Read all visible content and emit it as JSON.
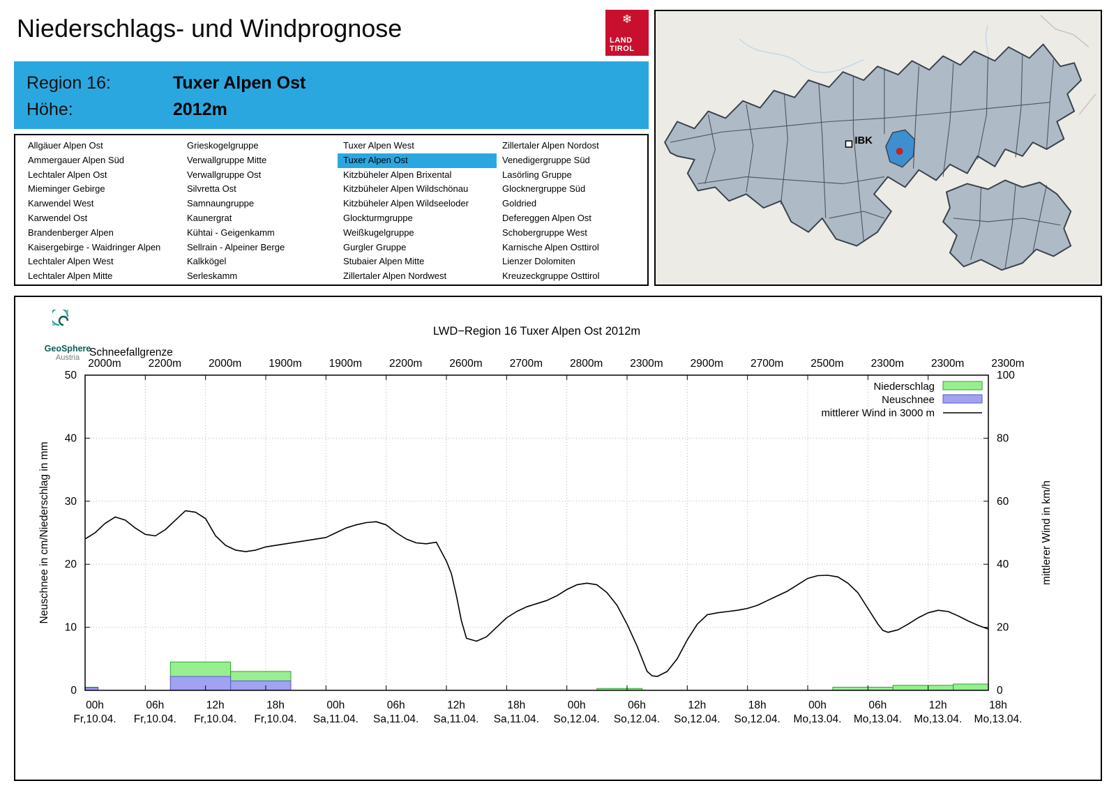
{
  "theme": {
    "accent_blue": "#2BA7E0",
    "logo_red": "#C8102E",
    "map_region_fill": "#AEBAC6",
    "map_region_border": "#39424E",
    "map_highlight": "#3E8FD0",
    "map_marker_red": "#C22420",
    "precip_fill": "#98EE90",
    "precip_border": "#2FA32F",
    "snow_fill": "#A2A2F2",
    "snow_border": "#5A5ACE",
    "wind_color": "#000000"
  },
  "header": {
    "title": "Niederschlags- und Windprognose",
    "logo_snowflake": "❄",
    "logo_line1": "LAND",
    "logo_line2": "TIROL"
  },
  "region_info": {
    "region_label": "Region 16:",
    "region_value": "Tuxer Alpen Ost",
    "altitude_label": "Höhe:",
    "altitude_value": "2012m"
  },
  "region_list": {
    "selected": "Tuxer Alpen Ost",
    "columns": [
      [
        "Allgäuer Alpen Ost",
        "Ammergauer Alpen Süd",
        "Lechtaler Alpen Ost",
        "Mieminger Gebirge",
        "Karwendel West",
        "Karwendel Ost",
        "Brandenberger Alpen",
        "Kaisergebirge - Waidringer Alpen",
        "Lechtaler Alpen West",
        "Lechtaler Alpen Mitte"
      ],
      [
        "Grieskogelgruppe",
        "Verwallgruppe Mitte",
        "Verwallgruppe Ost",
        "Silvretta Ost",
        "Samnaungruppe",
        "Kaunergrat",
        "Kühtai - Geigenkamm",
        "Sellrain - Alpeiner Berge",
        "Kalkkögel",
        "Serleskamm"
      ],
      [
        "Tuxer Alpen West",
        "Tuxer Alpen Ost",
        "Kitzbüheler Alpen Brixental",
        "Kitzbüheler Alpen Wildschönau",
        "Kitzbüheler Alpen Wildseeloder",
        "Glockturmgruppe",
        "Weißkugelgruppe",
        "Gurgler Gruppe",
        "Stubaier Alpen Mitte",
        "Zillertaler Alpen Nordwest"
      ],
      [
        "Zillertaler Alpen Nordost",
        "Venedigergruppe Süd",
        "Lasörling Gruppe",
        "Glocknergruppe Süd",
        "Goldried",
        "Defereggen Alpen Ost",
        "Schobergruppe West",
        "Karnische Alpen Osttirol",
        "Lienzer Dolomiten",
        "Kreuzeckgruppe Osttirol"
      ]
    ]
  },
  "map": {
    "ibk_label": "IBK"
  },
  "chart_data": {
    "type": "line+bar",
    "title": "LWD−Region 16 Tuxer Alpen Ost 2012m",
    "provider_line1": "GeoSphere",
    "provider_line2": "Austria",
    "snowline_label": "Schneefallgrenze",
    "snowline_values": [
      "2000m",
      "2200m",
      "2000m",
      "1900m",
      "1900m",
      "2200m",
      "2600m",
      "2700m",
      "2800m",
      "2300m",
      "2900m",
      "2700m",
      "2500m",
      "2300m",
      "2300m",
      "2300m"
    ],
    "ylabel_left": "Neuschnee in cm/Niederschlag in mm",
    "ylabel_right": "mittlerer Wind in km/h",
    "ylim_left": [
      0,
      50
    ],
    "yticks_left": [
      0,
      10,
      20,
      30,
      40,
      50
    ],
    "ylim_right": [
      0,
      100
    ],
    "yticks_right": [
      0,
      20,
      40,
      60,
      80,
      100
    ],
    "x_range_hours": [
      0,
      90
    ],
    "grid": true,
    "legend_position": "top-right",
    "x_ticks": [
      {
        "hour": "00h",
        "date": "Fr,10.04."
      },
      {
        "hour": "06h",
        "date": "Fr,10.04."
      },
      {
        "hour": "12h",
        "date": "Fr,10.04."
      },
      {
        "hour": "18h",
        "date": "Fr,10.04."
      },
      {
        "hour": "00h",
        "date": "Sa,11.04."
      },
      {
        "hour": "06h",
        "date": "Sa,11.04."
      },
      {
        "hour": "12h",
        "date": "Sa,11.04."
      },
      {
        "hour": "18h",
        "date": "Sa,11.04."
      },
      {
        "hour": "00h",
        "date": "So,12.04."
      },
      {
        "hour": "06h",
        "date": "So,12.04."
      },
      {
        "hour": "12h",
        "date": "So,12.04."
      },
      {
        "hour": "18h",
        "date": "So,12.04."
      },
      {
        "hour": "00h",
        "date": "Mo,13.04."
      },
      {
        "hour": "06h",
        "date": "Mo,13.04."
      },
      {
        "hour": "12h",
        "date": "Mo,13.04."
      },
      {
        "hour": "18h",
        "date": "Mo,13.04."
      }
    ],
    "legend": [
      {
        "label": "Niederschlag",
        "swatch": "precip"
      },
      {
        "label": "Neuschnee",
        "swatch": "snow"
      },
      {
        "label": "mittlerer Wind in 3000 m",
        "swatch": "line"
      }
    ],
    "precipitation_mm": [
      [
        0,
        1.3,
        0.5
      ],
      [
        8.5,
        14.5,
        4.5
      ],
      [
        14.5,
        20.5,
        3.0
      ],
      [
        51,
        55.5,
        0.3
      ],
      [
        74.5,
        80.5,
        0.5
      ],
      [
        80.5,
        86.5,
        0.8
      ],
      [
        86.5,
        90,
        1.0
      ]
    ],
    "new_snow_cm": [
      [
        0,
        1.3,
        0.4
      ],
      [
        8.5,
        14.5,
        2.2
      ],
      [
        14.5,
        20.5,
        1.5
      ]
    ],
    "wind_kmh": [
      [
        0,
        48
      ],
      [
        1,
        50
      ],
      [
        2,
        53
      ],
      [
        3,
        55
      ],
      [
        4,
        54
      ],
      [
        5,
        51.5
      ],
      [
        6,
        49.5
      ],
      [
        7,
        49
      ],
      [
        8,
        51
      ],
      [
        9,
        54
      ],
      [
        10,
        57
      ],
      [
        11,
        56.5
      ],
      [
        12,
        54.5
      ],
      [
        13,
        49
      ],
      [
        14,
        46
      ],
      [
        15,
        44.5
      ],
      [
        16,
        44
      ],
      [
        17,
        44.5
      ],
      [
        18,
        45.5
      ],
      [
        19,
        46
      ],
      [
        20,
        46.5
      ],
      [
        21,
        47
      ],
      [
        22,
        47.5
      ],
      [
        24,
        48.5
      ],
      [
        25,
        50
      ],
      [
        26,
        51.5
      ],
      [
        27,
        52.5
      ],
      [
        28,
        53.2
      ],
      [
        29,
        53.5
      ],
      [
        30,
        52.5
      ],
      [
        31,
        50
      ],
      [
        32,
        48
      ],
      [
        33,
        46.8
      ],
      [
        34,
        46.5
      ],
      [
        35,
        47
      ],
      [
        36,
        41
      ],
      [
        36.5,
        37
      ],
      [
        37,
        30
      ],
      [
        37.5,
        22
      ],
      [
        38,
        16.5
      ],
      [
        39,
        15.6
      ],
      [
        40,
        17
      ],
      [
        41,
        20
      ],
      [
        42,
        23
      ],
      [
        43,
        25
      ],
      [
        44,
        26.5
      ],
      [
        45,
        27.5
      ],
      [
        46,
        28.5
      ],
      [
        47,
        30
      ],
      [
        48,
        32
      ],
      [
        49,
        33.5
      ],
      [
        50,
        34
      ],
      [
        51,
        33.5
      ],
      [
        52,
        31
      ],
      [
        53,
        27
      ],
      [
        54,
        21
      ],
      [
        55,
        14
      ],
      [
        56,
        6
      ],
      [
        56.5,
        4.6
      ],
      [
        57,
        4.4
      ],
      [
        58,
        6
      ],
      [
        59,
        10
      ],
      [
        60,
        16
      ],
      [
        61,
        21
      ],
      [
        62,
        24
      ],
      [
        63,
        24.6
      ],
      [
        64,
        25
      ],
      [
        65,
        25.4
      ],
      [
        66,
        26
      ],
      [
        67,
        27
      ],
      [
        68,
        28.5
      ],
      [
        69,
        30
      ],
      [
        70,
        31.5
      ],
      [
        71,
        33.5
      ],
      [
        72,
        35.5
      ],
      [
        73,
        36.4
      ],
      [
        74,
        36.5
      ],
      [
        75,
        36
      ],
      [
        76,
        34
      ],
      [
        77,
        31
      ],
      [
        78,
        26
      ],
      [
        79,
        21
      ],
      [
        79.5,
        19
      ],
      [
        80,
        18.4
      ],
      [
        81,
        19.2
      ],
      [
        82,
        21
      ],
      [
        83,
        23
      ],
      [
        84,
        24.6
      ],
      [
        85,
        25.4
      ],
      [
        86,
        25
      ],
      [
        87,
        23.6
      ],
      [
        88,
        22
      ],
      [
        89,
        20.6
      ],
      [
        90,
        19.4
      ]
    ]
  }
}
